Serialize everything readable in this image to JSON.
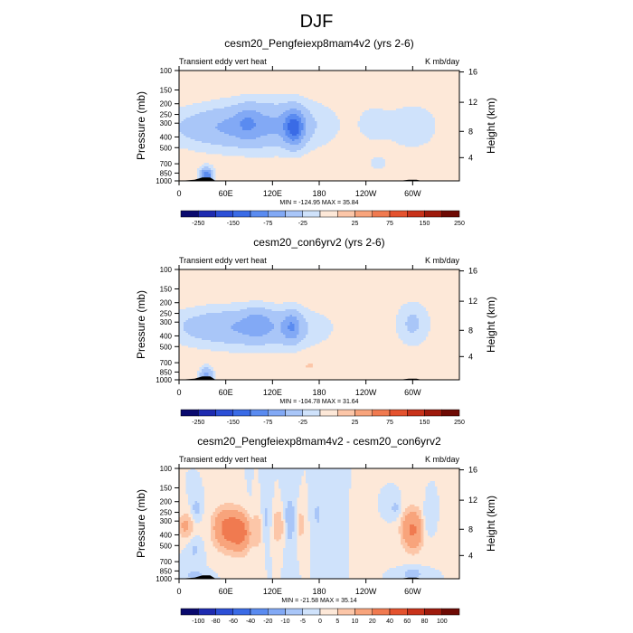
{
  "figure_title": "DJF",
  "chart_data": [
    {
      "type": "heatmap",
      "title": "cesm20_Pengfeiexp8mam4v2 (yrs 2-6)",
      "left_string": "Transient eddy vert heat",
      "right_string": "K mb/day",
      "ylabel": "Pressure (mb)",
      "ylabel_right": "Height (km)",
      "x_ticks": [
        "0",
        "60E",
        "120E",
        "180",
        "120W",
        "60W"
      ],
      "x_tick_lon": [
        0,
        60,
        120,
        180,
        240,
        300
      ],
      "xlim": [
        0,
        360
      ],
      "y_ticks": [
        "100",
        "150",
        "200",
        "250",
        "300",
        "400",
        "500",
        "700",
        "850",
        "1000"
      ],
      "y_tick_p": [
        100,
        150,
        200,
        250,
        300,
        400,
        500,
        700,
        850,
        1000
      ],
      "ylim": [
        1000,
        100
      ],
      "y_scale": "log",
      "height_ticks": [
        "4",
        "8",
        "12",
        "16"
      ],
      "height_tick_p": [
        616,
        356,
        194,
        103
      ],
      "stats": "MIN = -124.95  MAX = 35.84",
      "colorbar": {
        "levels": [
          -250,
          -200,
          -150,
          -100,
          -75,
          -50,
          -25,
          -10,
          10,
          25,
          50,
          75,
          100,
          150,
          200,
          250
        ],
        "labels": [
          "-250",
          "-150",
          "-75",
          "-25",
          "25",
          "75",
          "150",
          "250"
        ],
        "label_levels": [
          -250,
          -150,
          -75,
          -25,
          25,
          75,
          150,
          250
        ]
      },
      "features": [
        {
          "lon": 45,
          "p": 330,
          "dlon": 50,
          "dlogp": 0.13,
          "value": -35
        },
        {
          "lon": 88,
          "p": 290,
          "dlon": 10,
          "dlogp": 0.1,
          "value": -25
        },
        {
          "lon": 120,
          "p": 310,
          "dlon": 50,
          "dlogp": 0.16,
          "value": -45
        },
        {
          "lon": 148,
          "p": 330,
          "dlon": 9,
          "dlogp": 0.11,
          "value": -80
        },
        {
          "lon": 250,
          "p": 300,
          "dlon": 15,
          "dlogp": 0.13,
          "value": -15
        },
        {
          "lon": 300,
          "p": 320,
          "dlon": 22,
          "dlogp": 0.14,
          "value": -25
        },
        {
          "lon": 255,
          "p": 700,
          "dlon": 15,
          "dlogp": 0.08,
          "value": -12
        },
        {
          "lon": 35,
          "p": 900,
          "dlon": 6,
          "dlogp": 0.05,
          "value": -100
        }
      ],
      "topography": [
        {
          "lon": 0,
          "top_p": 1000
        },
        {
          "lon": 20,
          "top_p": 975
        },
        {
          "lon": 30,
          "top_p": 930
        },
        {
          "lon": 40,
          "top_p": 930
        },
        {
          "lon": 46,
          "top_p": 990
        },
        {
          "lon": 110,
          "top_p": 990
        },
        {
          "lon": 150,
          "top_p": 995
        },
        {
          "lon": 285,
          "top_p": 995
        },
        {
          "lon": 295,
          "top_p": 975
        },
        {
          "lon": 305,
          "top_p": 975
        },
        {
          "lon": 312,
          "top_p": 1000
        },
        {
          "lon": 360,
          "top_p": 1000
        }
      ]
    },
    {
      "type": "heatmap",
      "title": "cesm20_con6yrv2 (yrs 2-6)",
      "left_string": "Transient eddy vert heat",
      "right_string": "K mb/day",
      "ylabel": "Pressure (mb)",
      "ylabel_right": "Height (km)",
      "x_ticks": [
        "0",
        "60E",
        "120E",
        "180",
        "120W",
        "60W"
      ],
      "x_tick_lon": [
        0,
        60,
        120,
        180,
        240,
        300
      ],
      "xlim": [
        0,
        360
      ],
      "y_ticks": [
        "100",
        "150",
        "200",
        "250",
        "300",
        "400",
        "500",
        "700",
        "850",
        "1000"
      ],
      "y_tick_p": [
        100,
        150,
        200,
        250,
        300,
        400,
        500,
        700,
        850,
        1000
      ],
      "ylim": [
        1000,
        100
      ],
      "y_scale": "log",
      "height_ticks": [
        "4",
        "8",
        "12",
        "16"
      ],
      "height_tick_p": [
        616,
        356,
        194,
        103
      ],
      "stats": "MIN = -104.78  MAX = 31.64",
      "colorbar": {
        "levels": [
          -250,
          -200,
          -150,
          -100,
          -75,
          -50,
          -25,
          -10,
          10,
          25,
          50,
          75,
          100,
          150,
          200,
          250
        ],
        "labels": [
          "-250",
          "-150",
          "-75",
          "-25",
          "25",
          "75",
          "150",
          "250"
        ],
        "label_levels": [
          -250,
          -150,
          -75,
          -25,
          25,
          75,
          150,
          250
        ]
      },
      "features": [
        {
          "lon": 40,
          "p": 330,
          "dlon": 45,
          "dlogp": 0.12,
          "value": -30
        },
        {
          "lon": 115,
          "p": 340,
          "dlon": 50,
          "dlogp": 0.13,
          "value": -40
        },
        {
          "lon": 100,
          "p": 300,
          "dlon": 12,
          "dlogp": 0.09,
          "value": -25
        },
        {
          "lon": 145,
          "p": 330,
          "dlon": 8,
          "dlogp": 0.1,
          "value": -45
        },
        {
          "lon": 300,
          "p": 310,
          "dlon": 15,
          "dlogp": 0.14,
          "value": -30
        },
        {
          "lon": 168,
          "p": 750,
          "dlon": 8,
          "dlogp": 0.03,
          "value": 12
        },
        {
          "lon": 35,
          "p": 900,
          "dlon": 6,
          "dlogp": 0.05,
          "value": -60
        }
      ],
      "topography": [
        {
          "lon": 0,
          "top_p": 1000
        },
        {
          "lon": 20,
          "top_p": 975
        },
        {
          "lon": 30,
          "top_p": 930
        },
        {
          "lon": 40,
          "top_p": 930
        },
        {
          "lon": 46,
          "top_p": 990
        },
        {
          "lon": 110,
          "top_p": 990
        },
        {
          "lon": 150,
          "top_p": 995
        },
        {
          "lon": 285,
          "top_p": 995
        },
        {
          "lon": 295,
          "top_p": 975
        },
        {
          "lon": 305,
          "top_p": 975
        },
        {
          "lon": 312,
          "top_p": 1000
        },
        {
          "lon": 360,
          "top_p": 1000
        }
      ]
    },
    {
      "type": "heatmap",
      "title": "cesm20_Pengfeiexp8mam4v2 - cesm20_con6yrv2",
      "left_string": "Transient eddy vert heat",
      "right_string": "K mb/day",
      "ylabel": "Pressure (mb)",
      "ylabel_right": "Height (km)",
      "x_ticks": [
        "0",
        "60E",
        "120E",
        "180",
        "120W",
        "60W"
      ],
      "x_tick_lon": [
        0,
        60,
        120,
        180,
        240,
        300
      ],
      "xlim": [
        0,
        360
      ],
      "y_ticks": [
        "100",
        "150",
        "200",
        "250",
        "300",
        "400",
        "500",
        "700",
        "850",
        "1000"
      ],
      "y_tick_p": [
        100,
        150,
        200,
        250,
        300,
        400,
        500,
        700,
        850,
        1000
      ],
      "ylim": [
        1000,
        100
      ],
      "y_scale": "log",
      "height_ticks": [
        "4",
        "8",
        "12",
        "16"
      ],
      "height_tick_p": [
        616,
        356,
        194,
        103
      ],
      "stats": "MIN = -21.58  MAX = 35.14",
      "colorbar": {
        "levels": [
          -100,
          -80,
          -60,
          -40,
          -20,
          -10,
          -5,
          0,
          5,
          10,
          20,
          40,
          60,
          80,
          100
        ],
        "labels": [
          "-100",
          "-80",
          "-60",
          "-40",
          "-20",
          "-10",
          "-5",
          "0",
          "5",
          "10",
          "20",
          "40",
          "60",
          "80",
          "100"
        ],
        "label_levels": [
          -100,
          -80,
          -60,
          -40,
          -20,
          -10,
          -5,
          0,
          5,
          10,
          20,
          40,
          60,
          80,
          100
        ]
      },
      "features": [
        {
          "lon": 8,
          "p": 330,
          "dlon": 7,
          "dlogp": 0.08,
          "value": 12
        },
        {
          "lon": 22,
          "p": 230,
          "dlon": 4,
          "dlogp": 0.07,
          "value": -8
        },
        {
          "lon": 20,
          "p": 550,
          "dlon": 6,
          "dlogp": 0.07,
          "value": -6
        },
        {
          "lon": 60,
          "p": 350,
          "dlon": 12,
          "dlogp": 0.13,
          "value": 22
        },
        {
          "lon": 80,
          "p": 380,
          "dlon": 10,
          "dlogp": 0.12,
          "value": 24
        },
        {
          "lon": 92,
          "p": 350,
          "dlon": 5,
          "dlogp": 0.14,
          "value": -7
        },
        {
          "lon": 100,
          "p": 350,
          "dlon": 7,
          "dlogp": 0.14,
          "value": 8
        },
        {
          "lon": 112,
          "p": 300,
          "dlon": 5,
          "dlogp": 0.14,
          "value": -9
        },
        {
          "lon": 128,
          "p": 330,
          "dlon": 8,
          "dlogp": 0.12,
          "value": 10
        },
        {
          "lon": 142,
          "p": 300,
          "dlon": 6,
          "dlogp": 0.15,
          "value": -12
        },
        {
          "lon": 155,
          "p": 320,
          "dlon": 5,
          "dlogp": 0.12,
          "value": 8
        },
        {
          "lon": 178,
          "p": 260,
          "dlon": 5,
          "dlogp": 0.13,
          "value": -6
        },
        {
          "lon": 278,
          "p": 230,
          "dlon": 5,
          "dlogp": 0.06,
          "value": -7
        },
        {
          "lon": 300,
          "p": 360,
          "dlon": 10,
          "dlogp": 0.13,
          "value": 22
        },
        {
          "lon": 318,
          "p": 300,
          "dlon": 5,
          "dlogp": 0.1,
          "value": -6
        },
        {
          "lon": 20,
          "p": 930,
          "dlon": 10,
          "dlogp": 0.03,
          "value": -8
        },
        {
          "lon": 300,
          "p": 900,
          "dlon": 8,
          "dlogp": 0.04,
          "value": -10
        }
      ],
      "topography": [
        {
          "lon": 0,
          "top_p": 1000
        },
        {
          "lon": 20,
          "top_p": 975
        },
        {
          "lon": 30,
          "top_p": 930
        },
        {
          "lon": 40,
          "top_p": 930
        },
        {
          "lon": 46,
          "top_p": 990
        },
        {
          "lon": 110,
          "top_p": 990
        },
        {
          "lon": 150,
          "top_p": 995
        },
        {
          "lon": 285,
          "top_p": 995
        },
        {
          "lon": 295,
          "top_p": 975
        },
        {
          "lon": 305,
          "top_p": 975
        },
        {
          "lon": 312,
          "top_p": 1000
        },
        {
          "lon": 360,
          "top_p": 1000
        }
      ]
    }
  ],
  "colormap": [
    "#0a0a6e",
    "#1e2bb0",
    "#2c4fd6",
    "#3a6be6",
    "#5a8bf0",
    "#82a9f5",
    "#a9c6f8",
    "#cfe2fb",
    "#fde8d8",
    "#fcc6a8",
    "#f8a47c",
    "#f07a50",
    "#e4522e",
    "#c8321a",
    "#9e1a0c",
    "#6e0a04"
  ],
  "colormap_diff": [
    "#0a0a6e",
    "#1e2bb0",
    "#2c4fd6",
    "#3a6be6",
    "#5a8bf0",
    "#82a9f5",
    "#a9c6f8",
    "#cfe2fb",
    "#fde8d8",
    "#fcc6a8",
    "#f8a47c",
    "#f07a50",
    "#e4522e",
    "#c8321a",
    "#9e1a0c",
    "#6e0a04"
  ],
  "topography_color": "#000000"
}
